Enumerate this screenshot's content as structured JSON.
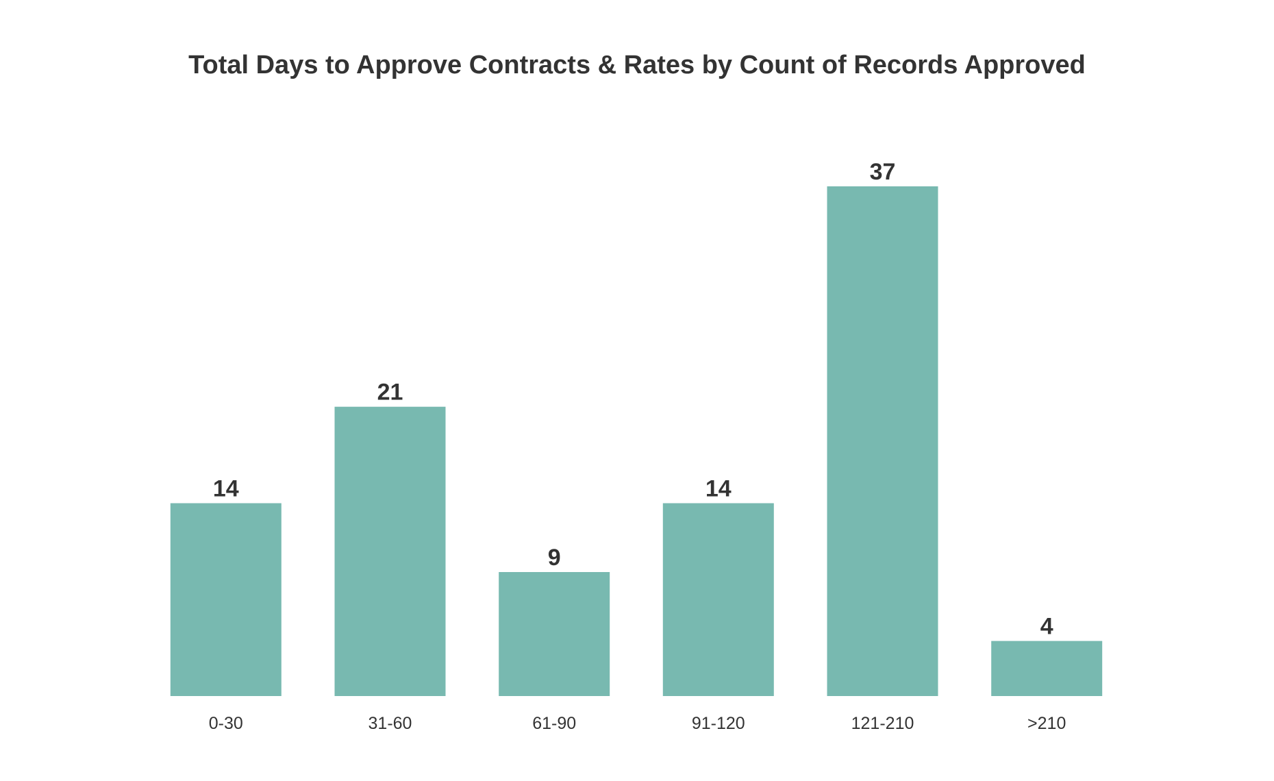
{
  "chart_data": {
    "type": "bar",
    "title": "Total Days to Approve Contracts & Rates by Count of Records Approved",
    "categories": [
      "0-30",
      "31-60",
      "61-90",
      "91-120",
      "121-210",
      ">210"
    ],
    "values": [
      14,
      21,
      9,
      14,
      37,
      4
    ],
    "data_labels": [
      "14",
      "21",
      "9",
      "14",
      "37",
      "4"
    ],
    "xlabel": "",
    "ylabel": "",
    "ylim": [
      0,
      37
    ],
    "grid": false,
    "legend": "none",
    "bar_color": "#78b9b0",
    "text_color": "#333333"
  }
}
